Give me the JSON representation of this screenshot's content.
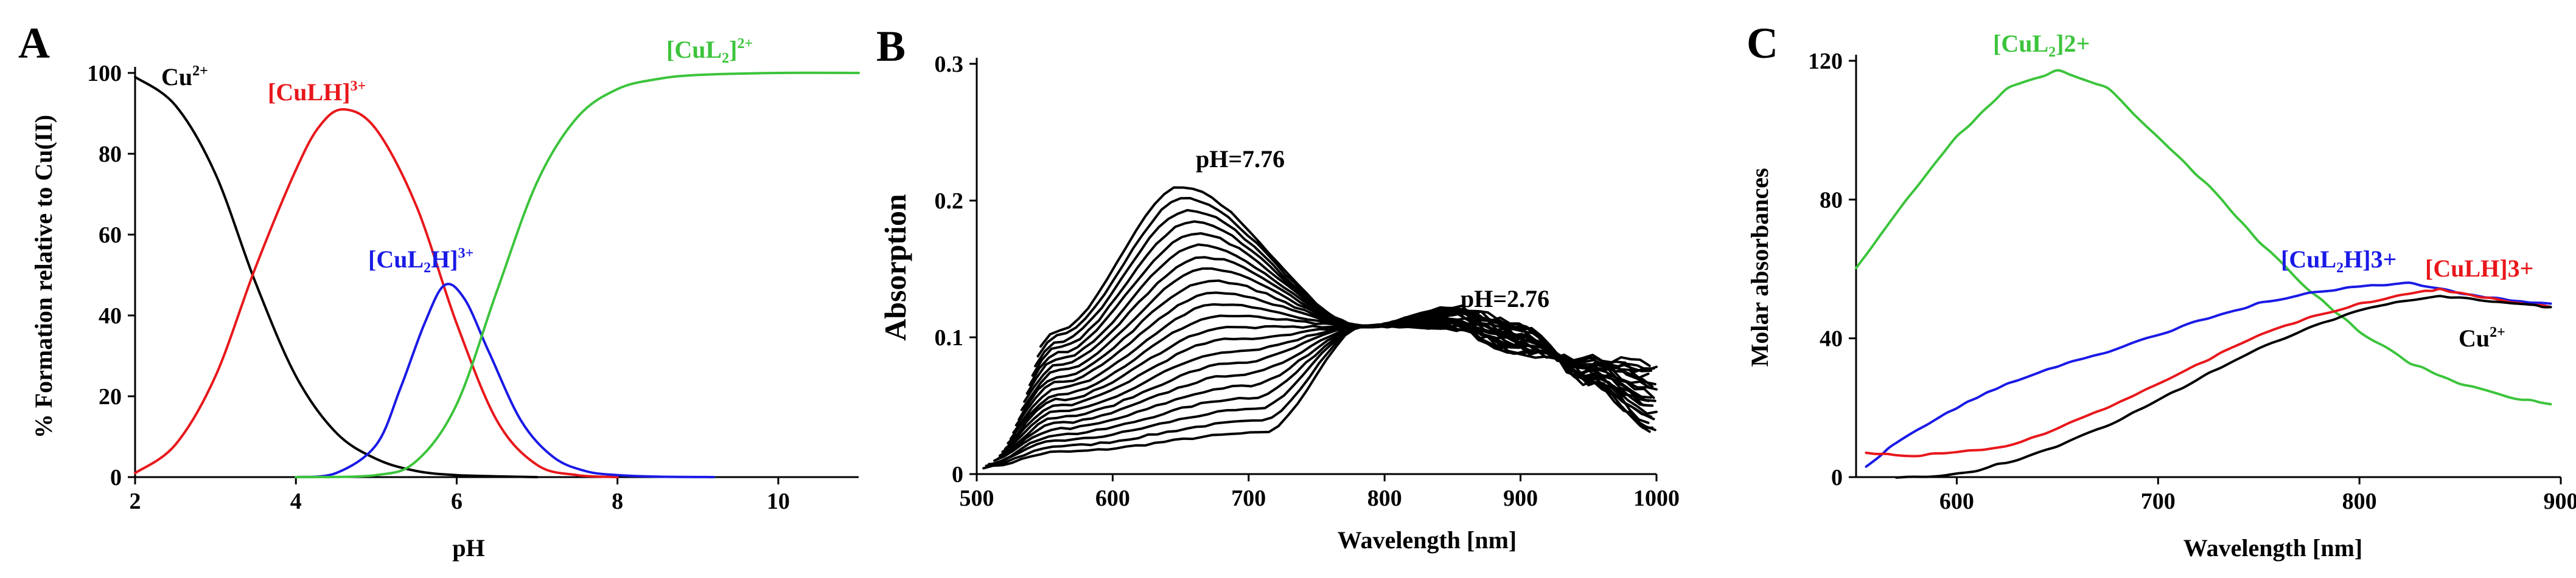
{
  "chart_data": [
    {
      "panel": "A",
      "type": "line",
      "xlabel": "pH",
      "ylabel": "% Formation relative to Cu(II)",
      "xlim": [
        2,
        11
      ],
      "ylim": [
        0,
        100
      ],
      "xticks": [
        "2",
        "4",
        "6",
        "8",
        "10"
      ],
      "yticks": [
        "0",
        "20",
        "40",
        "60",
        "80",
        "100"
      ],
      "series": [
        {
          "name": "Cu",
          "label_sup": "2+",
          "color": "#000000",
          "x": [
            2.0,
            2.5,
            3.0,
            3.5,
            4.0,
            4.5,
            5.0,
            5.5,
            6.0,
            6.5,
            7.0
          ],
          "y": [
            99,
            92,
            75,
            48,
            25,
            11,
            4.5,
            1.5,
            0.5,
            0.2,
            0
          ]
        },
        {
          "name": "[CuLH]",
          "label_sup": "3+",
          "color": "#e8171b",
          "x": [
            2.0,
            2.5,
            3.0,
            3.5,
            4.0,
            4.3,
            4.6,
            5.0,
            5.5,
            6.0,
            6.5,
            7.0,
            7.5,
            8.0
          ],
          "y": [
            1,
            8,
            25,
            52,
            76,
            87,
            91,
            86,
            67,
            38,
            14,
            3,
            0.5,
            0
          ]
        },
        {
          "name": "[CuL2H]",
          "label_sub": "2",
          "label_sup": "3+",
          "color": "#1a1ae6",
          "x": [
            4.0,
            4.5,
            5.0,
            5.3,
            5.6,
            5.85,
            6.1,
            6.4,
            6.8,
            7.2,
            7.6,
            8.0,
            8.5,
            9.2
          ],
          "y": [
            0,
            1,
            8,
            22,
            38,
            47.5,
            44,
            31,
            14,
            5,
            1.5,
            0.5,
            0.1,
            0
          ]
        },
        {
          "name": "[CuL2]",
          "label_sub": "2",
          "label_sup": "2+",
          "color": "#3cc43c",
          "x": [
            4.0,
            5.0,
            5.5,
            6.0,
            6.5,
            7.0,
            7.5,
            8.0,
            8.5,
            9.0,
            10.0,
            11.0
          ],
          "y": [
            0,
            0.5,
            4,
            18,
            46,
            73,
            89,
            96,
            98.5,
            99.5,
            100,
            100
          ]
        }
      ]
    },
    {
      "panel": "B",
      "type": "line",
      "xlabel": "Wavelength [nm]",
      "ylabel": "Absorption",
      "xlim": [
        500,
        1000
      ],
      "ylim": [
        0,
        0.3
      ],
      "xticks": [
        "500",
        "600",
        "700",
        "800",
        "900",
        "1000"
      ],
      "yticks": [
        "0",
        "0.1",
        "0.2",
        "0.3"
      ],
      "annotations": [
        {
          "text": "pH=7.76",
          "x": 655,
          "y": 0.225
        },
        {
          "text": "pH=2.76",
          "x": 870,
          "y": 0.125
        }
      ],
      "isosbestic_point": {
        "x": 785,
        "y": 0.108
      },
      "series_family": {
        "count": 22,
        "color": "#000000",
        "x_start": 505,
        "x_end": 1000,
        "peak_wavelength_high_pH": 650,
        "peak_absorbance_high_pH": 0.21,
        "peak_absorbance_low_pH": 0.03,
        "value_at_1000_high_pH": 0.08,
        "value_at_1000_low_pH": 0.03
      }
    },
    {
      "panel": "C",
      "type": "line",
      "xlabel": "Wavelength [nm]",
      "ylabel": "Molar absorbances",
      "xlim": [
        550,
        900
      ],
      "ylim": [
        0,
        120
      ],
      "xticks": [
        "600",
        "700",
        "800",
        "900"
      ],
      "yticks": [
        "0",
        "40",
        "80",
        "120"
      ],
      "series": [
        {
          "name": "[CuL2]2+",
          "label_sub": "2",
          "color": "#3cc43c",
          "x": [
            550,
            575,
            600,
            625,
            650,
            675,
            700,
            725,
            750,
            775,
            800,
            825,
            850,
            875,
            895
          ],
          "y": [
            60,
            80,
            98,
            112,
            117,
            112,
            98,
            84,
            68,
            54,
            42,
            33,
            27,
            23,
            21
          ]
        },
        {
          "name": "[CuL2H]3+",
          "label_sub": "2",
          "color": "#1a1ae6",
          "x": [
            555,
            570,
            590,
            610,
            630,
            650,
            675,
            700,
            725,
            750,
            775,
            800,
            825,
            850,
            875,
            895
          ],
          "y": [
            3,
            10,
            17,
            23,
            28,
            32,
            36,
            41,
            46,
            50,
            53,
            55,
            56,
            53,
            51,
            50
          ]
        },
        {
          "name": "[CuLH]3+",
          "color": "#e8171b",
          "x": [
            555,
            575,
            600,
            625,
            650,
            675,
            700,
            725,
            750,
            775,
            800,
            825,
            840,
            860,
            880,
            895
          ],
          "y": [
            7,
            6,
            7,
            9,
            14,
            20,
            27,
            34,
            41,
            46,
            50,
            53,
            54,
            52,
            50,
            49
          ]
        },
        {
          "name": "Cu2+",
          "color": "#000000",
          "x": [
            570,
            590,
            610,
            630,
            650,
            675,
            700,
            725,
            750,
            775,
            800,
            825,
            840,
            860,
            880,
            895
          ],
          "y": [
            0,
            0,
            2,
            5,
            9,
            15,
            22,
            30,
            37,
            43,
            48,
            51,
            52,
            51,
            50,
            49
          ]
        }
      ]
    }
  ],
  "panels": {
    "a": {
      "letter": "A",
      "ylabel": "% Formation relative to Cu(II)",
      "xlabel": "pH",
      "cu": {
        "base": "Cu",
        "sup": "2+"
      },
      "culh": {
        "base": "[CuLH]",
        "sup": "3+"
      },
      "cul2h": {
        "pre": "[CuL",
        "sub": "2",
        "post": "H]",
        "sup": "3+"
      },
      "cul2": {
        "pre": "[CuL",
        "sub": "2",
        "post": "]",
        "sup": "2+"
      }
    },
    "b": {
      "letter": "B",
      "ylabel": "Absorption",
      "xlabel": "Wavelength [nm]",
      "ph_high": "pH=7.76",
      "ph_low": "pH=2.76"
    },
    "c": {
      "letter": "C",
      "ylabel": "Molar absorbances",
      "xlabel": "Wavelength [nm]",
      "cul2": {
        "pre": "[CuL",
        "sub": "2",
        "post": "]2+"
      },
      "cul2h": {
        "pre": "[CuL",
        "sub": "2",
        "post": "H]3+"
      },
      "culh": {
        "text": "[CuLH]3+"
      },
      "cu": {
        "base": "Cu",
        "sup": "2+"
      }
    }
  }
}
